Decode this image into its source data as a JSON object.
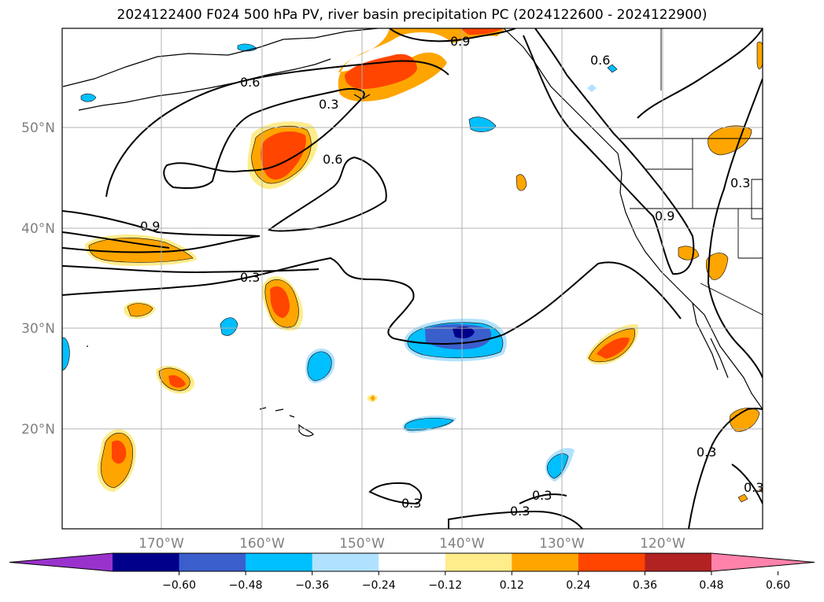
{
  "title": "2024122400 F024 500 hPa PV, river basin precipitation PC (2024122600 - 2024122900)",
  "map": {
    "lat_labels": [
      "50°N",
      "40°N",
      "30°N",
      "20°N"
    ],
    "lon_labels": [
      "170°W",
      "160°W",
      "150°W",
      "140°W",
      "130°W",
      "120°W"
    ],
    "grid_color": "#b0b0b0",
    "contour_labels": [
      "0.9",
      "0.6",
      "0.6",
      "0.3",
      "0.6",
      "0.9",
      "0.3",
      "0.3",
      "0.9",
      "0.3",
      "0.3",
      "0.3",
      "0.3",
      "0.3"
    ]
  },
  "colorbar": {
    "colors": [
      "#9932cc",
      "#00008b",
      "#3a5fcd",
      "#00bfff",
      "#b0e2ff",
      "#ffffff",
      "#ffec8b",
      "#ffa500",
      "#ff4500",
      "#b22222",
      "#ff82ab"
    ],
    "tick_labels": [
      "−0.60",
      "−0.48",
      "−0.36",
      "−0.24",
      "−0.12",
      "0.12",
      "0.24",
      "0.36",
      "0.48",
      "0.60"
    ]
  }
}
